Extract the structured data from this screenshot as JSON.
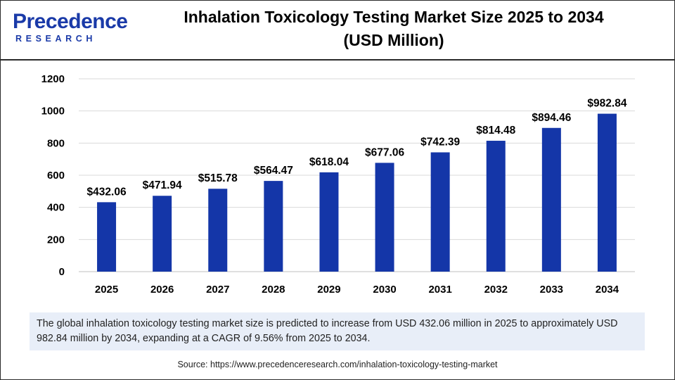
{
  "brand": {
    "logo_word": "Precedence",
    "logo_sub": "RESEARCH",
    "color": "#1a3aa8"
  },
  "title": {
    "line1": "Inhalation Toxicology Testing Market Size 2025 to 2034",
    "line2": "(USD Million)"
  },
  "chart_data": {
    "type": "bar",
    "categories": [
      "2025",
      "2026",
      "2027",
      "2028",
      "2029",
      "2030",
      "2031",
      "2032",
      "2033",
      "2034"
    ],
    "values": [
      432.06,
      471.94,
      515.78,
      564.47,
      618.04,
      677.06,
      742.39,
      814.48,
      894.46,
      982.84
    ],
    "data_labels": [
      "$432.06",
      "$471.94",
      "$515.78",
      "$564.47",
      "$618.04",
      "$677.06",
      "$742.39",
      "$814.48",
      "$894.46",
      "$982.84"
    ],
    "yticks": [
      "0",
      "200",
      "400",
      "600",
      "800",
      "1000",
      "1200"
    ],
    "ylim": [
      0,
      1200
    ],
    "grid": true,
    "bar_color": "#1436a8",
    "legend": "none"
  },
  "note": "The global inhalation toxicology testing market size is predicted to increase from USD 432.06 million in 2025 to approximately USD 982.84 million by 2034, expanding at a CAGR of 9.56% from 2025 to 2034.",
  "source": "Source: https://www.precedenceresearch.com/inhalation-toxicology-testing-market"
}
